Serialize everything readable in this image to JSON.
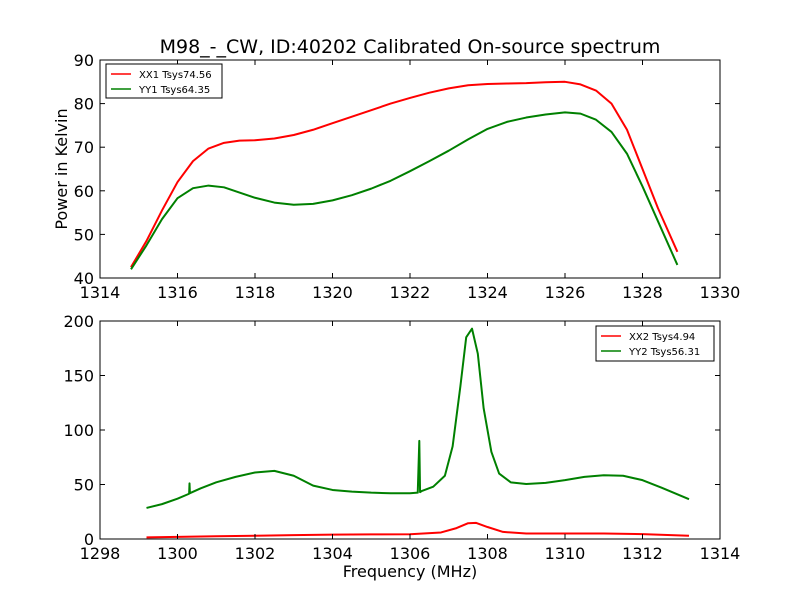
{
  "chart_data": [
    {
      "type": "line",
      "title": "M98_-_CW, ID:40202 Calibrated On-source spectrum",
      "xlabel": "",
      "ylabel": "Power in Kelvin",
      "xlim": [
        1314,
        1330
      ],
      "ylim": [
        40,
        90
      ],
      "xticks": [
        "1314",
        "1316",
        "1318",
        "1320",
        "1322",
        "1324",
        "1326",
        "1328",
        "1330"
      ],
      "yticks": [
        "40",
        "50",
        "60",
        "70",
        "80",
        "90"
      ],
      "grid": false,
      "legend": "top-left",
      "series": [
        {
          "name": "XX1 Tsys74.56",
          "color": "#ff0000",
          "x": [
            1314.8,
            1315.2,
            1315.6,
            1316.0,
            1316.4,
            1316.8,
            1317.2,
            1317.6,
            1318.0,
            1318.5,
            1319.0,
            1319.5,
            1320.0,
            1320.5,
            1321.0,
            1321.5,
            1322.0,
            1322.5,
            1323.0,
            1323.5,
            1324.0,
            1324.5,
            1325.0,
            1325.5,
            1326.0,
            1326.4,
            1326.8,
            1327.2,
            1327.6,
            1328.0,
            1328.4,
            1328.9
          ],
          "values": [
            42.5,
            48.5,
            55.5,
            62.0,
            66.8,
            69.7,
            71.0,
            71.5,
            71.6,
            72.0,
            72.8,
            74.0,
            75.5,
            77.0,
            78.5,
            80.0,
            81.3,
            82.5,
            83.5,
            84.2,
            84.5,
            84.6,
            84.7,
            84.9,
            85.0,
            84.4,
            83.0,
            80.0,
            74.0,
            65.0,
            56.0,
            46.0
          ]
        },
        {
          "name": "YY1 Tsys64.35",
          "color": "#008000",
          "x": [
            1314.8,
            1315.2,
            1315.6,
            1316.0,
            1316.4,
            1316.8,
            1317.2,
            1317.6,
            1318.0,
            1318.5,
            1319.0,
            1319.5,
            1320.0,
            1320.5,
            1321.0,
            1321.5,
            1322.0,
            1322.5,
            1323.0,
            1323.5,
            1324.0,
            1324.5,
            1325.0,
            1325.5,
            1326.0,
            1326.4,
            1326.8,
            1327.2,
            1327.6,
            1328.0,
            1328.4,
            1328.9
          ],
          "values": [
            42.0,
            47.5,
            53.5,
            58.3,
            60.6,
            61.2,
            60.8,
            59.6,
            58.4,
            57.3,
            56.8,
            57.0,
            57.8,
            59.0,
            60.5,
            62.3,
            64.5,
            66.8,
            69.2,
            71.8,
            74.2,
            75.8,
            76.8,
            77.5,
            78.0,
            77.7,
            76.3,
            73.5,
            68.5,
            61.0,
            53.0,
            43.0
          ]
        }
      ]
    },
    {
      "type": "line",
      "title": "",
      "xlabel": "Frequency (MHz)",
      "ylabel": "",
      "xlim": [
        1298,
        1314
      ],
      "ylim": [
        0,
        200
      ],
      "xticks": [
        "1298",
        "1300",
        "1302",
        "1304",
        "1306",
        "1308",
        "1310",
        "1312",
        "1314"
      ],
      "yticks": [
        "0",
        "50",
        "100",
        "150",
        "200"
      ],
      "grid": false,
      "legend": "top-right",
      "series": [
        {
          "name": "XX2 Tsys4.94",
          "color": "#ff0000",
          "x": [
            1299.2,
            1300.0,
            1301.0,
            1302.0,
            1303.0,
            1304.0,
            1305.0,
            1306.0,
            1306.8,
            1307.2,
            1307.5,
            1307.7,
            1308.0,
            1308.4,
            1309.0,
            1310.0,
            1311.0,
            1312.0,
            1313.2
          ],
          "values": [
            1.5,
            2.0,
            2.5,
            3.0,
            3.5,
            4.0,
            4.2,
            4.4,
            6.0,
            10.0,
            14.5,
            14.8,
            11.0,
            6.5,
            5.0,
            5.0,
            5.0,
            4.5,
            3.0
          ]
        },
        {
          "name": "YY2 Tsys56.31",
          "color": "#008000",
          "x": [
            1299.2,
            1299.6,
            1300.0,
            1300.3,
            1300.31,
            1300.32,
            1300.6,
            1301.0,
            1301.5,
            1302.0,
            1302.5,
            1303.0,
            1303.5,
            1304.0,
            1304.5,
            1305.0,
            1305.5,
            1306.0,
            1306.2,
            1306.24,
            1306.26,
            1306.3,
            1306.6,
            1306.9,
            1307.1,
            1307.3,
            1307.45,
            1307.6,
            1307.75,
            1307.9,
            1308.1,
            1308.3,
            1308.6,
            1309.0,
            1309.5,
            1310.0,
            1310.5,
            1311.0,
            1311.5,
            1312.0,
            1312.5,
            1313.2
          ],
          "values": [
            28.5,
            32.0,
            37.0,
            41.5,
            51.0,
            42.0,
            46.5,
            52.0,
            57.0,
            61.0,
            62.5,
            58.0,
            49.0,
            45.0,
            43.5,
            42.5,
            42.0,
            42.0,
            42.5,
            90.0,
            43.0,
            44.0,
            48.0,
            58.0,
            85.0,
            140.0,
            185.0,
            193.0,
            170.0,
            120.0,
            80.0,
            60.0,
            52.0,
            50.5,
            51.5,
            54.0,
            57.0,
            58.5,
            58.0,
            54.0,
            47.0,
            36.5
          ]
        }
      ]
    }
  ]
}
